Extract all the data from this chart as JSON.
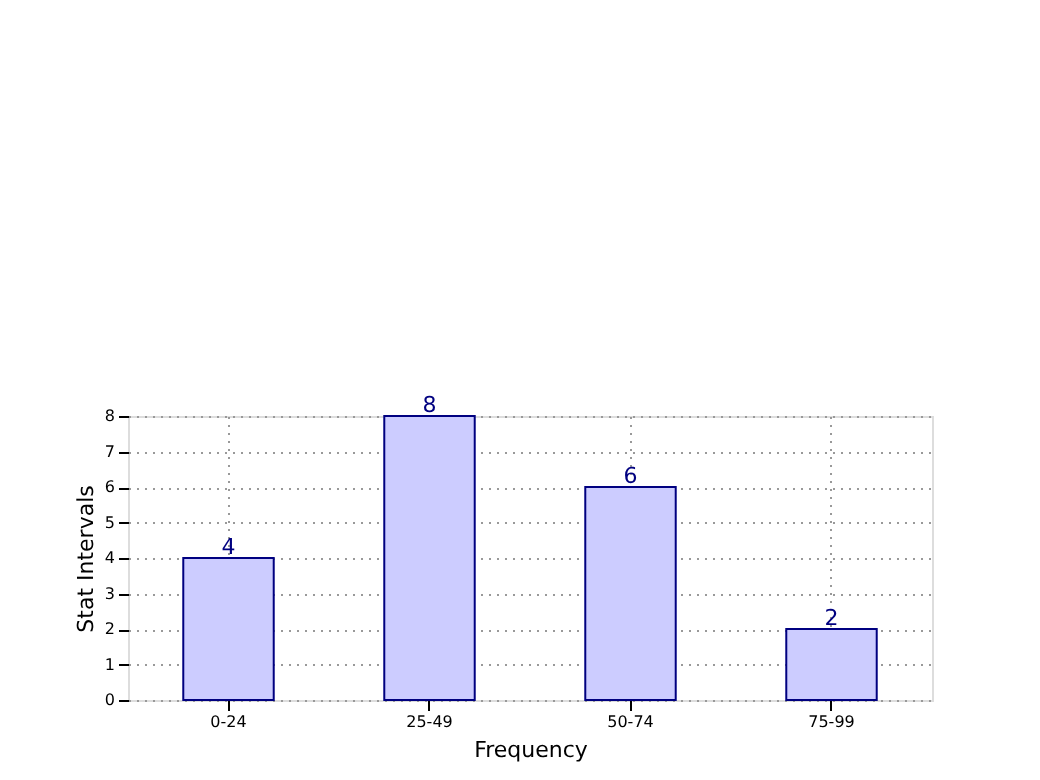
{
  "chart_data": {
    "type": "bar",
    "xlabel": "Frequency",
    "ylabel": "Stat Intervals",
    "categories": [
      "0-24",
      "25-49",
      "50-74",
      "75-99"
    ],
    "series": [
      {
        "color": "#ccccff",
        "values": [
          4,
          8,
          6,
          2
        ]
      }
    ],
    "ylim": [
      0,
      8
    ],
    "yticks": [
      0,
      1,
      2,
      3,
      4,
      5,
      6,
      7,
      8
    ],
    "grid": true,
    "data_labels": true
  }
}
